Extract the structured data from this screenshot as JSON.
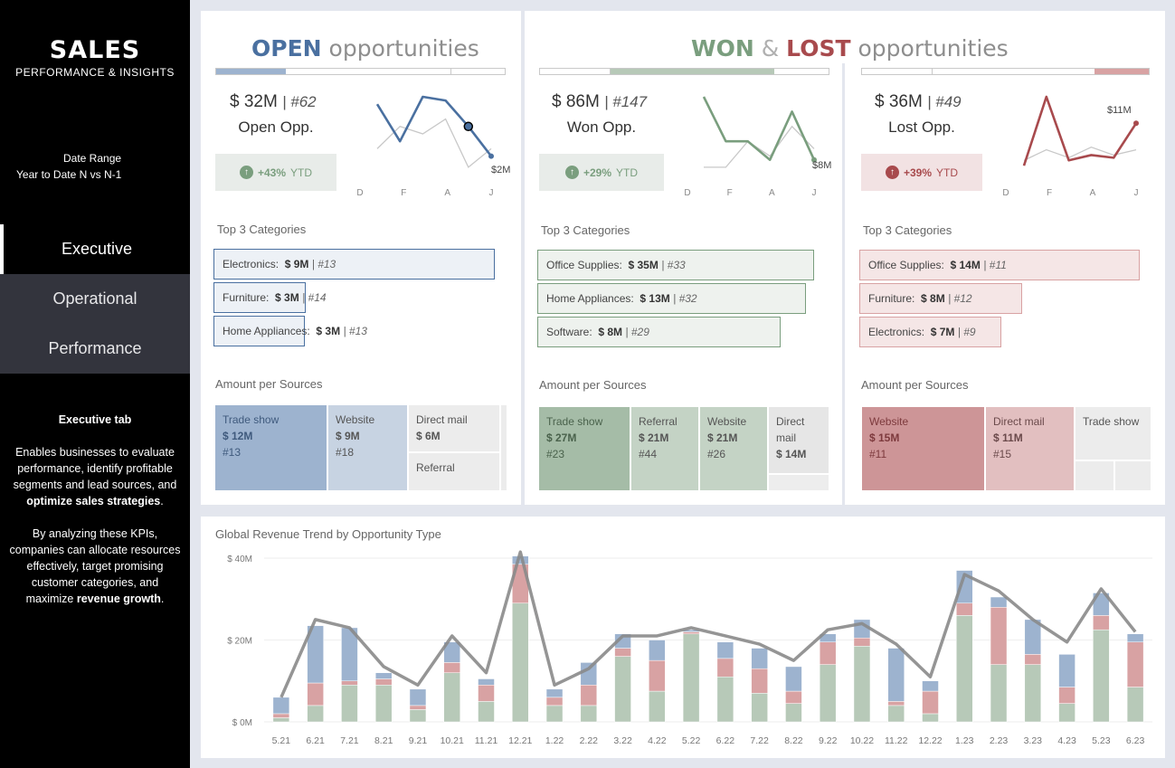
{
  "sidebar": {
    "title": "SALES",
    "subtitle": "PERFORMANCE & INSIGHTS",
    "date_range_label": "Date Range",
    "date_range_value": "Year to Date N vs N-1",
    "nav": [
      "Executive",
      "Operational",
      "Performance"
    ],
    "desc_title": "Executive tab",
    "desc_p1_a": "Enables businesses to evaluate performance, identify profitable segments and lead sources, and ",
    "desc_p1_b": "optimize sales strategies",
    "desc_p1_c": ".",
    "desc_p2_a": "By analyzing these KPIs, companies can allocate resources effectively, target promising customer categories, and maximize ",
    "desc_p2_b": "revenue growth",
    "desc_p2_c": "."
  },
  "colors": {
    "open": "#4a70a0",
    "won": "#7a9e7e",
    "lost": "#a84a4d",
    "open_light": "#9db3cf",
    "won_light": "#b7c9b8",
    "lost_light": "#d8a2a3"
  },
  "open": {
    "header_strong": "OPEN",
    "header_rest": "opportunities",
    "amount": "$ 32M",
    "count": "#62",
    "label": "Open Opp.",
    "ytd": "+43%",
    "ytd_suffix": "YTD",
    "spark_end_label": "$2M",
    "spark_axis": [
      "D",
      "F",
      "A",
      "J"
    ],
    "top_title": "Top 3 Categories",
    "categories": [
      {
        "name": "Electronics:",
        "amount": "$ 9M",
        "count": "#13"
      },
      {
        "name": "Furniture:",
        "amount": "$ 3M",
        "count": "#14"
      },
      {
        "name": "Home Appliances:",
        "amount": "$ 3M",
        "count": "#13"
      }
    ],
    "sources_title": "Amount per Sources",
    "sources": [
      {
        "name": "Trade show",
        "amount": "$ 12M",
        "count": "#13"
      },
      {
        "name": "Website",
        "amount": "$ 9M",
        "count": "#18"
      },
      {
        "name": "Direct mail",
        "amount": "$ 6M",
        "count": ""
      },
      {
        "name": "Referral",
        "amount": "",
        "count": ""
      }
    ]
  },
  "wl_header": {
    "won": "WON",
    "amp": "&",
    "lost": "LOST",
    "rest": "opportunities"
  },
  "won": {
    "amount": "$ 86M",
    "count": "#147",
    "label": "Won Opp.",
    "ytd": "+29%",
    "ytd_suffix": "YTD",
    "spark_end_label": "$8M",
    "spark_axis": [
      "D",
      "F",
      "A",
      "J"
    ],
    "top_title": "Top 3 Categories",
    "categories": [
      {
        "name": "Office Supplies:",
        "amount": "$ 35M",
        "count": "#33"
      },
      {
        "name": "Home Appliances:",
        "amount": "$ 13M",
        "count": "#32"
      },
      {
        "name": "Software:",
        "amount": "$ 8M",
        "count": "#29"
      }
    ],
    "sources_title": "Amount per Sources",
    "sources": [
      {
        "name": "Trade show",
        "amount": "$ 27M",
        "count": "#23"
      },
      {
        "name": "Referral",
        "amount": "$ 21M",
        "count": "#44"
      },
      {
        "name": "Website",
        "amount": "$ 21M",
        "count": "#26"
      },
      {
        "name": "Direct mail",
        "amount": "$ 14M",
        "count": ""
      }
    ]
  },
  "lost": {
    "amount": "$ 36M",
    "count": "#49",
    "label": "Lost Opp.",
    "ytd": "+39%",
    "ytd_suffix": "YTD",
    "spark_end_label": "$11M",
    "spark_axis": [
      "D",
      "F",
      "A",
      "J"
    ],
    "top_title": "Top 3 Categories",
    "categories": [
      {
        "name": "Office Supplies:",
        "amount": "$ 14M",
        "count": "#11"
      },
      {
        "name": "Furniture:",
        "amount": "$ 8M",
        "count": "#12"
      },
      {
        "name": "Electronics:",
        "amount": "$ 7M",
        "count": "#9"
      }
    ],
    "sources_title": "Amount per Sources",
    "sources": [
      {
        "name": "Website",
        "amount": "$ 15M",
        "count": "#11"
      },
      {
        "name": "Direct mail",
        "amount": "$ 11M",
        "count": "#15"
      },
      {
        "name": "Trade show",
        "amount": "",
        "count": ""
      }
    ]
  },
  "sparklines": {
    "open": {
      "current": [
        9,
        4,
        10,
        9.5,
        6,
        2
      ],
      "previous": [
        3,
        6,
        5,
        7,
        0.5,
        3
      ]
    },
    "won": {
      "current": [
        10,
        4,
        4,
        1.5,
        8,
        1.5
      ],
      "previous": [
        0.5,
        0.5,
        4,
        2,
        6,
        3
      ]
    },
    "lost": {
      "current": [
        1,
        14,
        2,
        3,
        2.5,
        9
      ],
      "previous": [
        2,
        4,
        2.5,
        4.5,
        3,
        4
      ]
    }
  },
  "chart_data": {
    "type": "bar",
    "stacked": true,
    "title": "Global Revenue Trend by Opportunity Type",
    "ytick_labels": [
      "$ 40M",
      "$ 20M",
      "$ 0M"
    ],
    "ylim": [
      0,
      40
    ],
    "categories": [
      "5.21",
      "6.21",
      "7.21",
      "8.21",
      "9.21",
      "10.21",
      "11.21",
      "12.21",
      "1.22",
      "2.22",
      "3.22",
      "4.22",
      "5.22",
      "6.22",
      "7.22",
      "8.22",
      "9.22",
      "10.22",
      "11.22",
      "12.22",
      "1.23",
      "2.23",
      "3.23",
      "4.23",
      "5.23",
      "6.23"
    ],
    "series": [
      {
        "name": "Won",
        "color": "#b7c9b8",
        "values": [
          1,
          4,
          9,
          9,
          3,
          12,
          5,
          29,
          4,
          4,
          16,
          7.5,
          21.5,
          11,
          7,
          4.5,
          14,
          18.5,
          4,
          2,
          26,
          14,
          14,
          4.5,
          22.5,
          8.5
        ]
      },
      {
        "name": "Lost",
        "color": "#d8a2a3",
        "values": [
          1,
          5.5,
          1,
          1.5,
          1,
          2.5,
          4,
          9.5,
          2,
          5,
          2,
          7.5,
          0.5,
          4.5,
          6,
          3,
          5.5,
          2,
          1,
          5.5,
          3,
          14,
          2.5,
          4,
          3.5,
          11
        ]
      },
      {
        "name": "Open",
        "color": "#9db3cf",
        "values": [
          4,
          14,
          13,
          1.5,
          4,
          5,
          1.5,
          2,
          2,
          5.5,
          3.5,
          5,
          0.5,
          4,
          5,
          6,
          2,
          4.5,
          13,
          2.5,
          8,
          2.5,
          8.5,
          8,
          5.5,
          2
        ]
      }
    ],
    "line": {
      "name": "N-1",
      "values": [
        6,
        25,
        23,
        13.5,
        9,
        21,
        12,
        41.5,
        9,
        13,
        21,
        21,
        23,
        21,
        19,
        15,
        22.5,
        24,
        19,
        11,
        36,
        32,
        25,
        19.5,
        32.5,
        22
      ]
    }
  }
}
